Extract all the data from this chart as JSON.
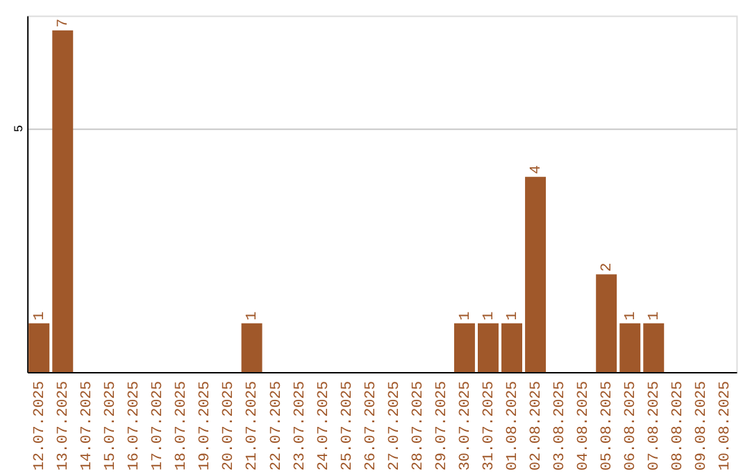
{
  "chart_data": {
    "type": "bar",
    "categories": [
      "12.07.2025",
      "13.07.2025",
      "14.07.2025",
      "15.07.2025",
      "16.07.2025",
      "17.07.2025",
      "18.07.2025",
      "19.07.2025",
      "20.07.2025",
      "21.07.2025",
      "22.07.2025",
      "23.07.2025",
      "24.07.2025",
      "25.07.2025",
      "26.07.2025",
      "27.07.2025",
      "28.07.2025",
      "29.07.2025",
      "30.07.2025",
      "31.07.2025",
      "01.08.2025",
      "02.08.2025",
      "03.08.2025",
      "04.08.2025",
      "05.08.2025",
      "06.08.2025",
      "07.08.2025",
      "08.08.2025",
      "09.08.2025",
      "10.08.2025"
    ],
    "values": [
      1,
      7,
      0,
      0,
      0,
      0,
      0,
      0,
      0,
      1,
      0,
      0,
      0,
      0,
      0,
      0,
      0,
      0,
      1,
      1,
      1,
      4,
      0,
      0,
      2,
      1,
      1,
      0,
      0,
      0
    ],
    "value_labels": [
      "1",
      "7",
      null,
      null,
      null,
      null,
      null,
      null,
      null,
      "1",
      null,
      null,
      null,
      null,
      null,
      null,
      null,
      null,
      "1",
      "1",
      "1",
      "4",
      null,
      null,
      "2",
      "1",
      "1",
      null,
      null,
      null
    ],
    "color": "#a0582a",
    "ylim": [
      0,
      7.3
    ],
    "yticks": [
      5
    ],
    "grid": "y"
  }
}
